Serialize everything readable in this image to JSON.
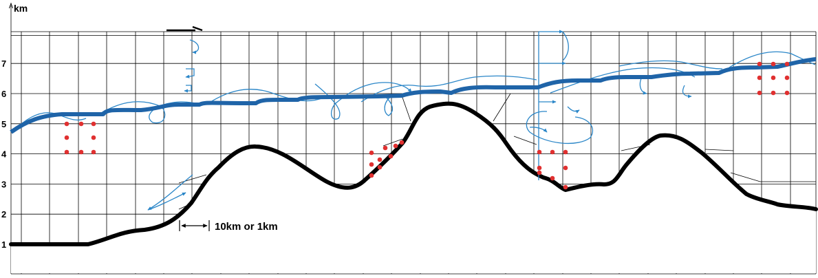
{
  "diagram": {
    "y_unit_label": "km",
    "y_ticks": [
      "1",
      "2",
      "3",
      "4",
      "5",
      "6",
      "7"
    ],
    "scale_label": "10km or 1km",
    "colors": {
      "terrain": "#000000",
      "upper_line": "#1f64a8",
      "flow": "#2a86c8",
      "points": "#e03030",
      "grid": "#000000"
    },
    "icons": [
      "up-arrow-icon",
      "right-arrow-icon",
      "double-headed-arrow-icon"
    ]
  }
}
